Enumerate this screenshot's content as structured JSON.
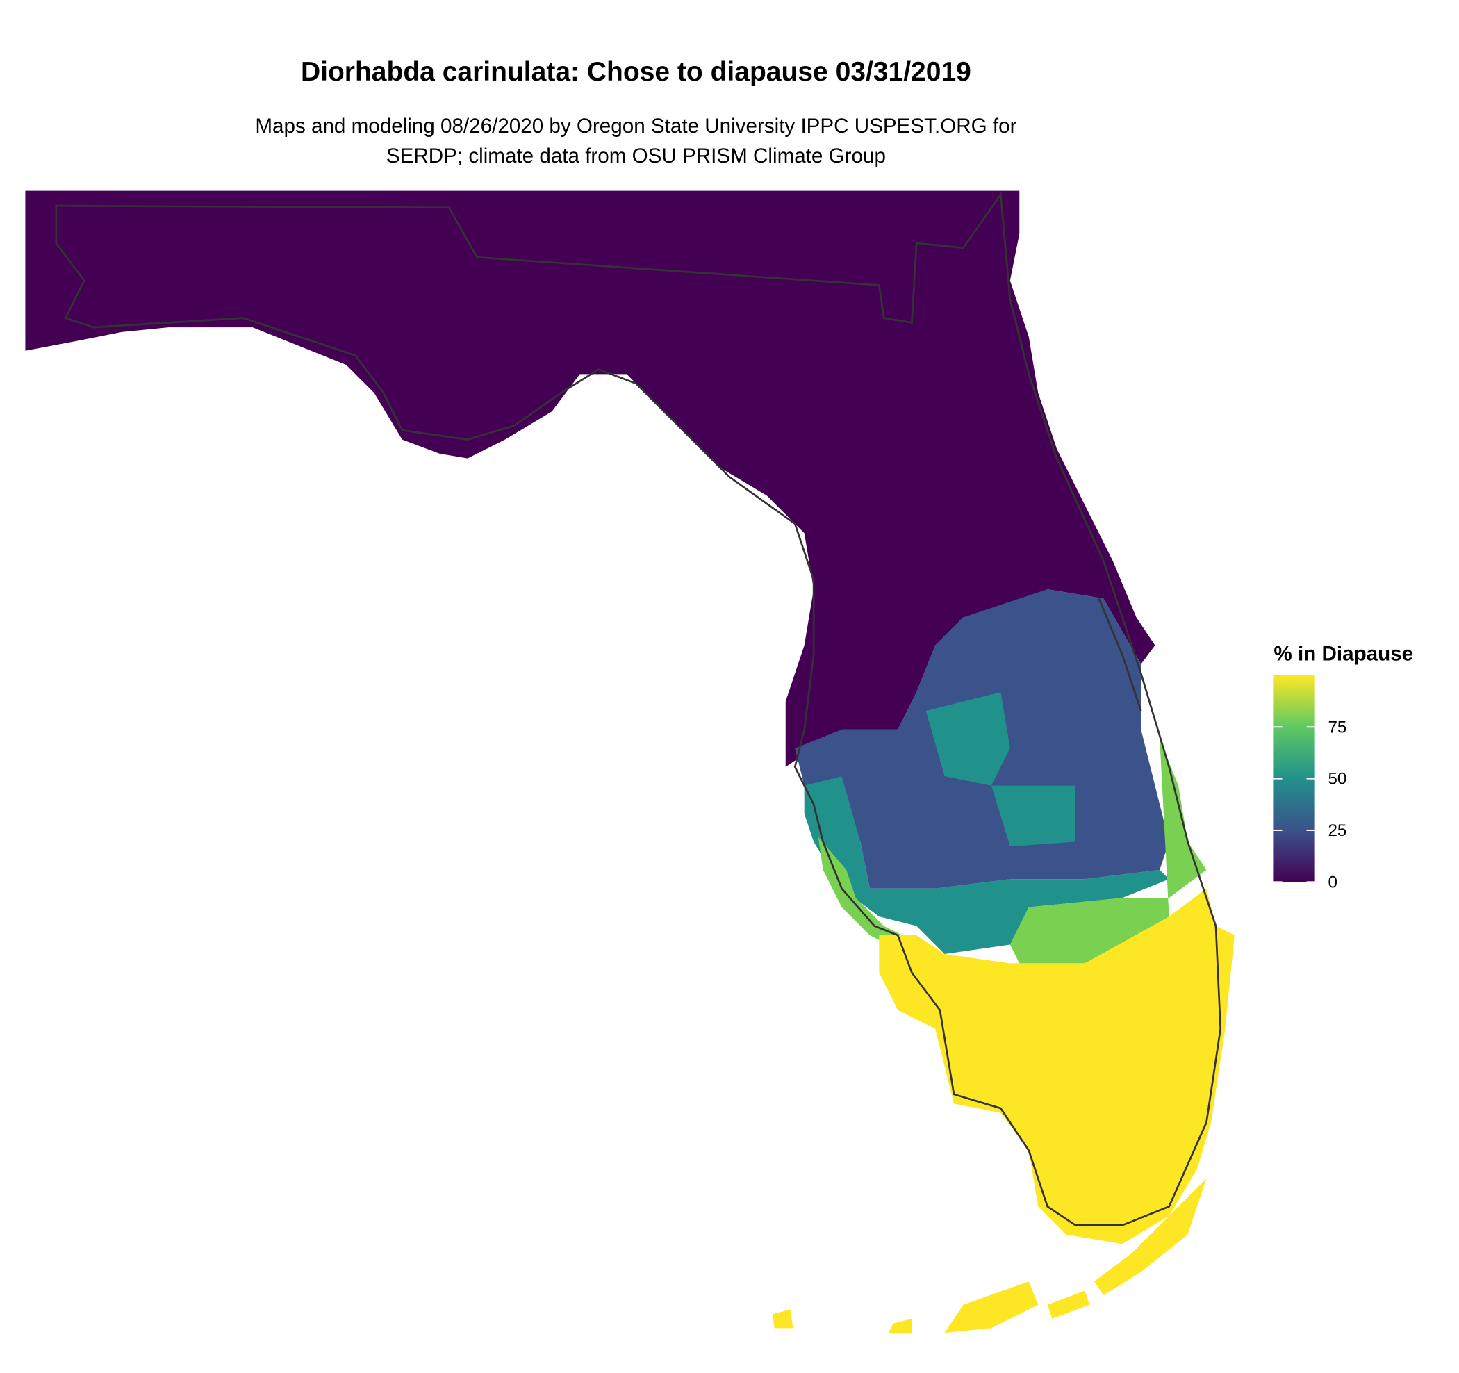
{
  "title": "Diorhabda carinulata: Chose to diapause 03/31/2019",
  "subtitle": [
    "Maps and modeling 08/26/2020 by Oregon State University IPPC USPEST.ORG for",
    "SERDP; climate data from OSU PRISM Climate Group"
  ],
  "legend": {
    "title": "% in Diapause",
    "limits": [
      0,
      100
    ],
    "ticks": [
      0,
      25,
      50,
      75
    ],
    "colors": [
      "#440154",
      "#3b528b",
      "#21918c",
      "#5ec962",
      "#fde725"
    ]
  }
}
